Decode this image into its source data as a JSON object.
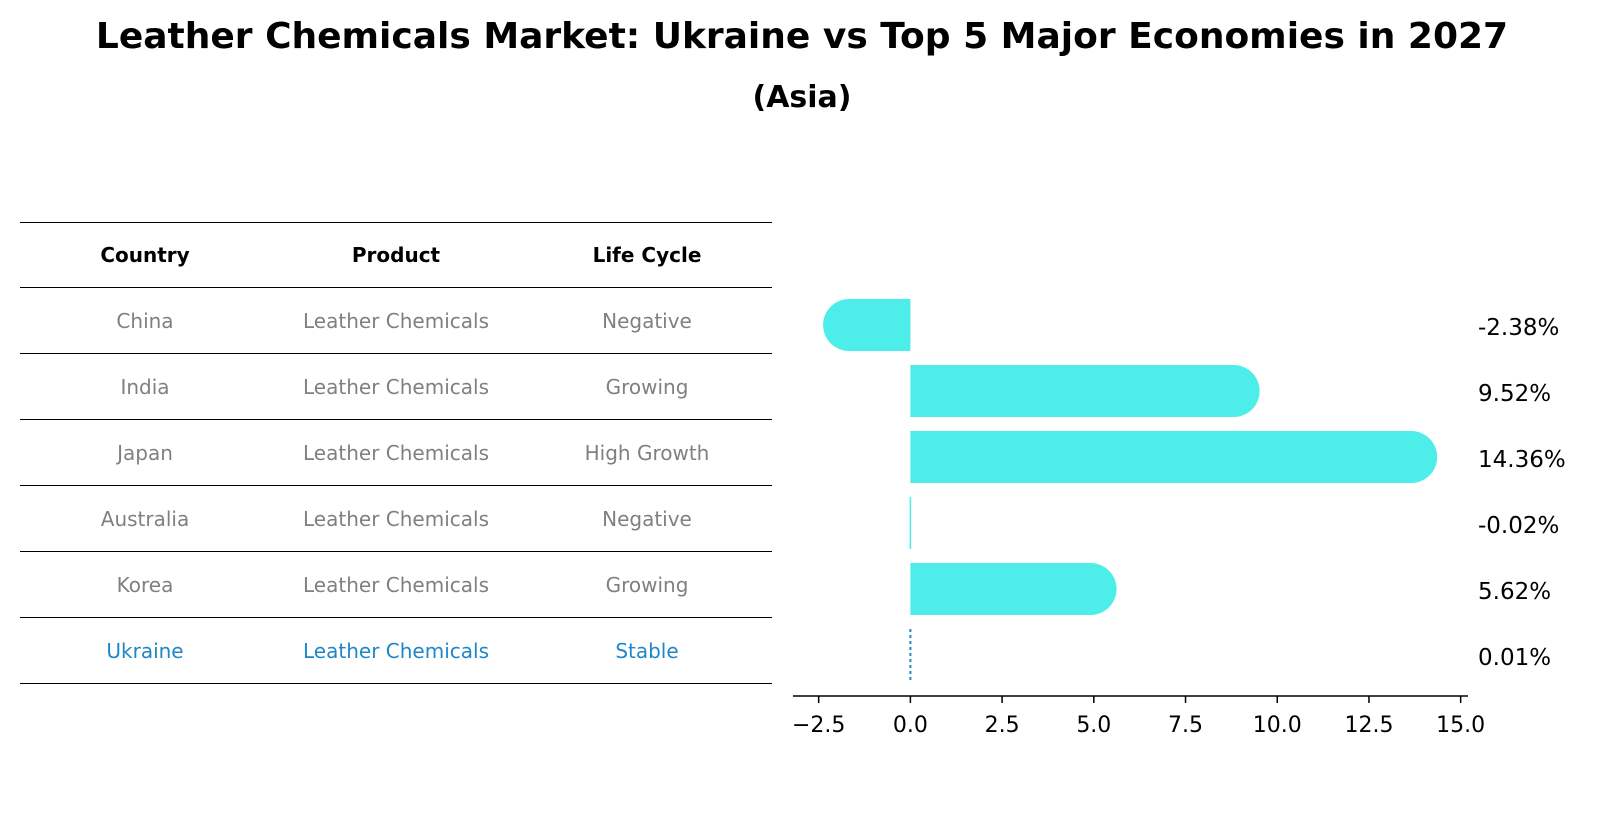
{
  "title": "Leather Chemicals Market: Ukraine vs Top 5 Major Economies in 2027",
  "subtitle": "(Asia)",
  "table": {
    "headers": [
      "Country",
      "Product",
      "Life Cycle"
    ],
    "rows": [
      {
        "country": "China",
        "product": "Leather Chemicals",
        "life_cycle": "Negative"
      },
      {
        "country": "India",
        "product": "Leather Chemicals",
        "life_cycle": "Growing"
      },
      {
        "country": "Japan",
        "product": "Leather Chemicals",
        "life_cycle": "High Growth"
      },
      {
        "country": "Australia",
        "product": "Leather Chemicals",
        "life_cycle": "Negative"
      },
      {
        "country": "Korea",
        "product": "Leather Chemicals",
        "life_cycle": "Growing"
      },
      {
        "country": "Ukraine",
        "product": "Leather Chemicals",
        "life_cycle": "Stable"
      }
    ]
  },
  "colors": {
    "bar": "#4deeea",
    "highlight": "#1f87c8",
    "muted_text": "#808080",
    "axis": "#000000"
  },
  "chart_data": {
    "type": "bar",
    "orientation": "horizontal",
    "categories": [
      "China",
      "India",
      "Japan",
      "Australia",
      "Korea",
      "Ukraine"
    ],
    "values": [
      -2.38,
      9.52,
      14.36,
      -0.02,
      5.62,
      0.01
    ],
    "value_labels": [
      "-2.38%",
      "9.52%",
      "14.36%",
      "-0.02%",
      "5.62%",
      "0.01%"
    ],
    "x_ticks": [
      -2.5,
      0.0,
      2.5,
      5.0,
      7.5,
      10.0,
      12.5,
      15.0
    ],
    "x_tick_labels": [
      "−2.5",
      "0.0",
      "2.5",
      "5.0",
      "7.5",
      "10.0",
      "12.5",
      "15.0"
    ],
    "xlim": [
      -3.2,
      15.2
    ],
    "highlight_category": "Ukraine",
    "title": "Leather Chemicals Market: Ukraine vs Top 5 Major Economies in 2027",
    "subtitle": "(Asia)",
    "xlabel": "",
    "ylabel": ""
  }
}
